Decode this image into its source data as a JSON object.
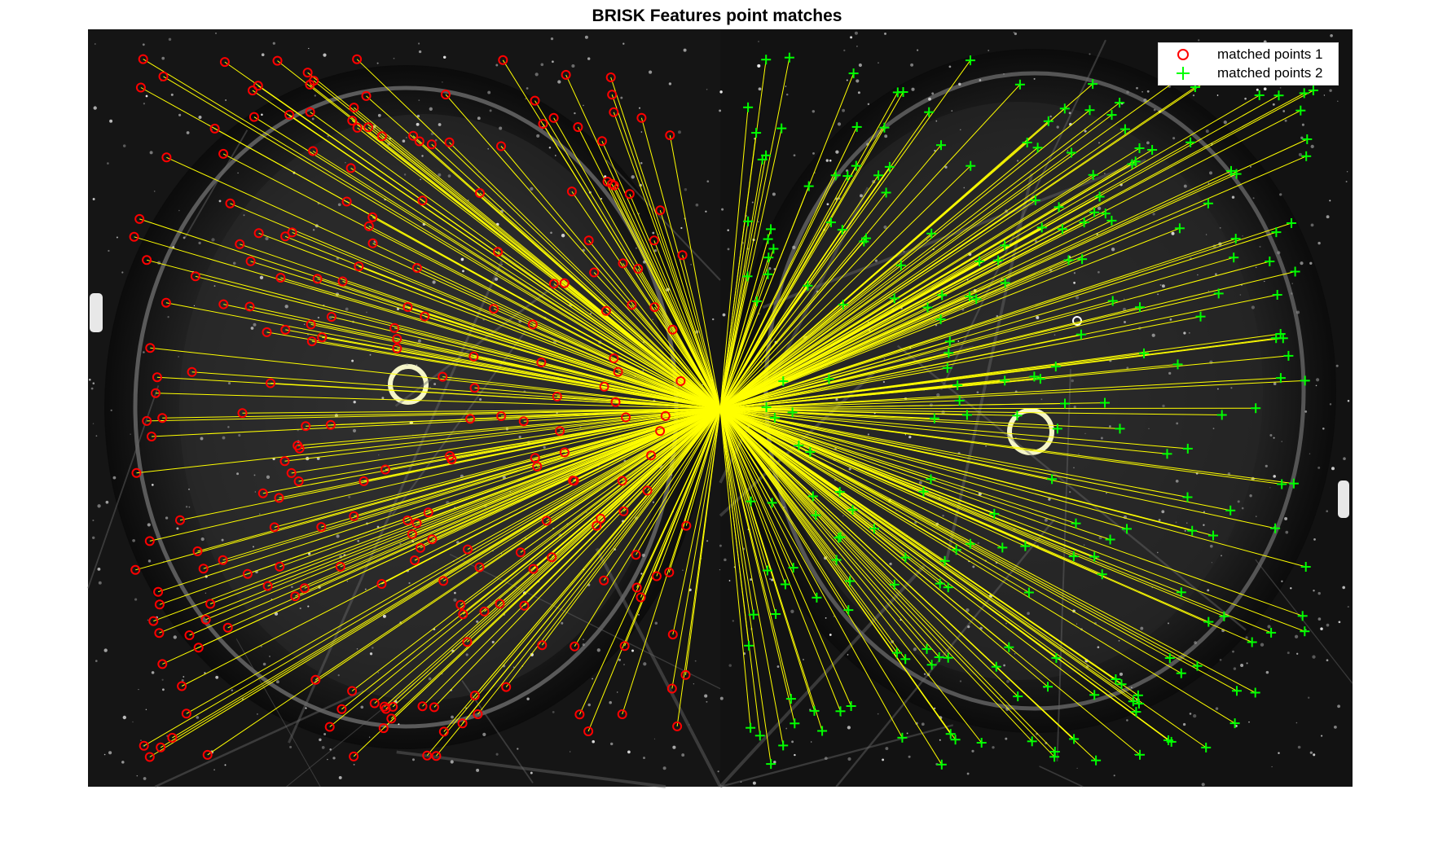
{
  "figure": {
    "title": "BRISK Features point matches"
  },
  "legend": {
    "items": [
      {
        "label": "matched points 1",
        "marker": "red-circle-icon",
        "color": "#ff0000"
      },
      {
        "label": "matched points 2",
        "marker": "green-plus-icon",
        "color": "#00ff00"
      }
    ]
  },
  "colors": {
    "match_line": "#ffff00",
    "points_1": "#ff0000",
    "points_2": "#00ff00",
    "image_background": "#141414"
  }
}
